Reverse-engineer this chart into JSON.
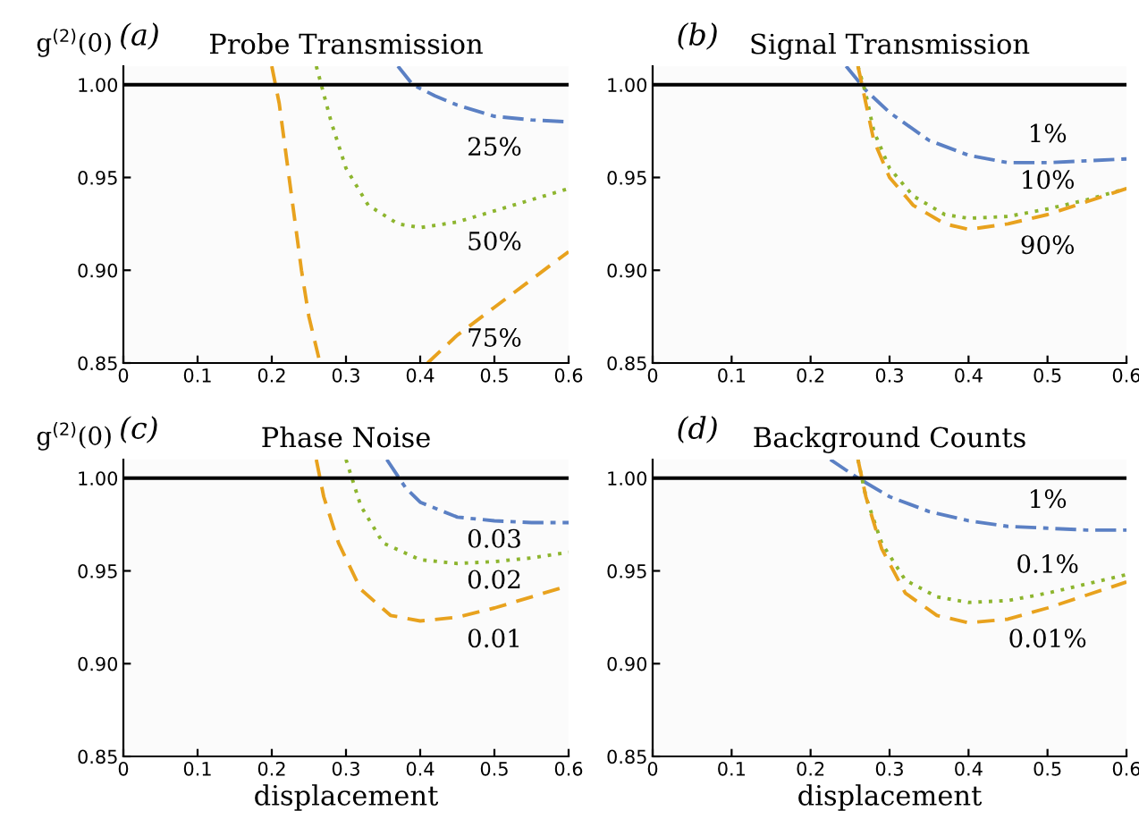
{
  "chart_data": [
    {
      "type": "line",
      "title": "Probe Transmission",
      "ylabel": "g$^{(2)}$(0)",
      "annotations": [
        "(a)"
      ],
      "xlim": [
        0,
        0.6
      ],
      "ylim": [
        0.85,
        1.01
      ],
      "xticks": [
        0,
        0.1,
        0.2,
        0.3,
        0.4,
        0.5,
        0.6
      ],
      "yticks": [
        {
          "value": 0.85,
          "label": "0.85"
        },
        {
          "value": 0.9,
          "label": "0.90"
        },
        {
          "value": 0.95,
          "label": "0.95"
        },
        {
          "value": 1.0,
          "label": "1.00"
        }
      ],
      "grid": false,
      "legend": false,
      "ref_lines": [
        {
          "axis": "y",
          "value": 1.0,
          "color": "#000000"
        }
      ],
      "series": [
        {
          "name": "25%",
          "color": "#5b80c4",
          "line_style": "dashdot",
          "x": [
            0.37,
            0.39,
            0.42,
            0.45,
            0.5,
            0.55,
            0.6
          ],
          "values": [
            1.01,
            1.0,
            0.994,
            0.989,
            0.983,
            0.981,
            0.98
          ]
        },
        {
          "name": "50%",
          "color": "#8db52e",
          "line_style": "dotted",
          "x": [
            0.26,
            0.28,
            0.3,
            0.33,
            0.37,
            0.4,
            0.45,
            0.5,
            0.55,
            0.6
          ],
          "values": [
            1.01,
            0.98,
            0.955,
            0.935,
            0.925,
            0.923,
            0.926,
            0.932,
            0.938,
            0.944
          ]
        },
        {
          "name": "75%",
          "color": "#e8a21e",
          "line_style": "dashed",
          "x": [
            0.2,
            0.21,
            0.22,
            0.23,
            0.24,
            0.25,
            0.265,
            0.33,
            0.41,
            0.45,
            0.5,
            0.55,
            0.6
          ],
          "values": [
            1.01,
            0.99,
            0.96,
            0.93,
            0.9,
            0.875,
            0.85,
            null,
            0.85,
            0.865,
            0.88,
            0.895,
            0.91
          ]
        }
      ]
    },
    {
      "type": "line",
      "title": "Signal Transmission",
      "annotations": [
        "(b)"
      ],
      "xlim": [
        0,
        0.6
      ],
      "ylim": [
        0.85,
        1.01
      ],
      "xticks": [
        0,
        0.1,
        0.2,
        0.3,
        0.4,
        0.5,
        0.6
      ],
      "yticks": [
        {
          "value": 0.85,
          "label": "0.85"
        },
        {
          "value": 0.9,
          "label": "0.90"
        },
        {
          "value": 0.95,
          "label": "0.95"
        },
        {
          "value": 1.0,
          "label": "1.00"
        }
      ],
      "grid": false,
      "legend": false,
      "ref_lines": [
        {
          "axis": "y",
          "value": 1.0,
          "color": "#000000"
        }
      ],
      "series": [
        {
          "name": "1%",
          "color": "#5b80c4",
          "line_style": "dashdot",
          "x": [
            0.245,
            0.27,
            0.3,
            0.35,
            0.4,
            0.45,
            0.5,
            0.55,
            0.6
          ],
          "values": [
            1.01,
            0.997,
            0.985,
            0.97,
            0.962,
            0.958,
            0.958,
            0.959,
            0.96
          ]
        },
        {
          "name": "10%",
          "color": "#8db52e",
          "line_style": "dotted",
          "x": [
            0.26,
            0.27,
            0.28,
            0.3,
            0.33,
            0.37,
            0.4,
            0.45,
            0.5,
            0.55,
            0.6
          ],
          "values": [
            1.01,
            0.995,
            0.975,
            0.955,
            0.94,
            0.93,
            0.928,
            0.929,
            0.933,
            0.938,
            0.944
          ]
        },
        {
          "name": "90%",
          "color": "#e8a21e",
          "line_style": "dashed",
          "x": [
            0.26,
            0.27,
            0.28,
            0.3,
            0.33,
            0.37,
            0.4,
            0.45,
            0.5,
            0.55,
            0.6
          ],
          "values": [
            1.01,
            0.99,
            0.97,
            0.95,
            0.935,
            0.925,
            0.922,
            0.925,
            0.93,
            0.937,
            0.944
          ]
        }
      ]
    },
    {
      "type": "line",
      "title": "Phase Noise",
      "ylabel": "g$^{(2)}$(0)",
      "xlabel": "displacement",
      "annotations": [
        "(c)"
      ],
      "xlim": [
        0,
        0.6
      ],
      "ylim": [
        0.85,
        1.01
      ],
      "xticks": [
        0,
        0.1,
        0.2,
        0.3,
        0.4,
        0.5,
        0.6
      ],
      "yticks": [
        {
          "value": 0.85,
          "label": "0.85"
        },
        {
          "value": 0.9,
          "label": "0.90"
        },
        {
          "value": 0.95,
          "label": "0.95"
        },
        {
          "value": 1.0,
          "label": "1.00"
        }
      ],
      "grid": false,
      "legend": false,
      "ref_lines": [
        {
          "axis": "y",
          "value": 1.0,
          "color": "#000000"
        }
      ],
      "series": [
        {
          "name": "0.03",
          "color": "#5b80c4",
          "line_style": "dashdot",
          "x": [
            0.355,
            0.38,
            0.4,
            0.45,
            0.5,
            0.55,
            0.6
          ],
          "values": [
            1.01,
            0.995,
            0.987,
            0.979,
            0.977,
            0.976,
            0.976
          ]
        },
        {
          "name": "0.02",
          "color": "#8db52e",
          "line_style": "dotted",
          "x": [
            0.3,
            0.32,
            0.35,
            0.4,
            0.45,
            0.5,
            0.55,
            0.6
          ],
          "values": [
            1.01,
            0.985,
            0.965,
            0.956,
            0.954,
            0.955,
            0.957,
            0.96
          ]
        },
        {
          "name": "0.01",
          "color": "#e8a21e",
          "line_style": "dashed",
          "x": [
            0.26,
            0.27,
            0.29,
            0.32,
            0.36,
            0.4,
            0.45,
            0.5,
            0.55,
            0.6
          ],
          "values": [
            1.01,
            0.99,
            0.965,
            0.94,
            0.926,
            0.923,
            0.925,
            0.93,
            0.936,
            0.942
          ]
        }
      ]
    },
    {
      "type": "line",
      "title": "Background Counts",
      "xlabel": "displacement",
      "annotations": [
        "(d)"
      ],
      "xlim": [
        0,
        0.6
      ],
      "ylim": [
        0.85,
        1.01
      ],
      "xticks": [
        0,
        0.1,
        0.2,
        0.3,
        0.4,
        0.5,
        0.6
      ],
      "yticks": [
        {
          "value": 0.85,
          "label": "0.85"
        },
        {
          "value": 0.9,
          "label": "0.90"
        },
        {
          "value": 0.95,
          "label": "0.95"
        },
        {
          "value": 1.0,
          "label": "1.00"
        }
      ],
      "grid": false,
      "legend": false,
      "ref_lines": [
        {
          "axis": "y",
          "value": 1.0,
          "color": "#000000"
        }
      ],
      "series": [
        {
          "name": "1%",
          "color": "#5b80c4",
          "line_style": "dashdot",
          "x": [
            0.225,
            0.26,
            0.3,
            0.35,
            0.4,
            0.45,
            0.5,
            0.55,
            0.6
          ],
          "values": [
            1.01,
            1.0,
            0.99,
            0.982,
            0.977,
            0.974,
            0.973,
            0.972,
            0.972
          ]
        },
        {
          "name": "0.1%",
          "color": "#8db52e",
          "line_style": "dotted",
          "x": [
            0.26,
            0.27,
            0.29,
            0.32,
            0.36,
            0.4,
            0.45,
            0.5,
            0.55,
            0.6
          ],
          "values": [
            1.01,
            0.99,
            0.965,
            0.945,
            0.936,
            0.933,
            0.934,
            0.938,
            0.943,
            0.948
          ]
        },
        {
          "name": "0.01%",
          "color": "#e8a21e",
          "line_style": "dashed",
          "x": [
            0.26,
            0.27,
            0.29,
            0.32,
            0.36,
            0.4,
            0.45,
            0.5,
            0.55,
            0.6
          ],
          "values": [
            1.01,
            0.99,
            0.962,
            0.938,
            0.926,
            0.922,
            0.924,
            0.93,
            0.937,
            0.944
          ]
        }
      ]
    }
  ]
}
